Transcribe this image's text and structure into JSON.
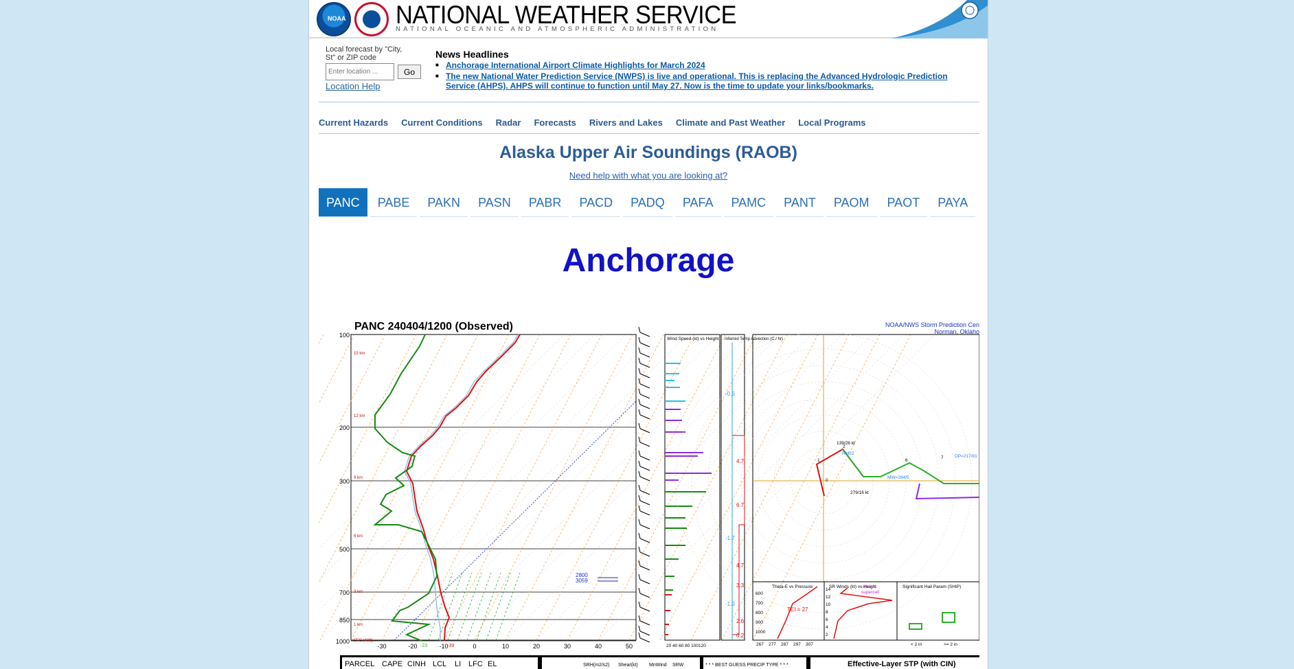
{
  "header": {
    "title": "NATIONAL WEATHER SERVICE",
    "subtitle": "NATIONAL OCEANIC AND ATMOSPHERIC ADMINISTRATION",
    "noaa_logo_text": "NOAA"
  },
  "local_forecast": {
    "label": "Local forecast by \"City, St\" or ZIP code",
    "placeholder": "Enter location ...",
    "go": "Go",
    "help": "Location Help"
  },
  "news": {
    "title": "News Headlines",
    "items": [
      "Anchorage International Airport Climate Highlights for March 2024",
      "The new National Water Prediction Service (NWPS) is live and operational. This is replacing the Advanced Hydrologic Prediction Service (AHPS). AHPS will continue to function until May 27. Now is the time to update your links/bookmarks."
    ]
  },
  "nav": [
    "Current Hazards",
    "Current Conditions",
    "Radar",
    "Forecasts",
    "Rivers and Lakes",
    "Climate and Past Weather",
    "Local Programs"
  ],
  "page": {
    "heading": "Alaska Upper Air Soundings (RAOB)",
    "help_link": "Need help with what you are looking at?",
    "station_name": "Anchorage"
  },
  "tabs": [
    "PANC",
    "PABE",
    "PAKN",
    "PASN",
    "PABR",
    "PACD",
    "PADQ",
    "PAFA",
    "PAMC",
    "PANT",
    "PAOM",
    "PAOT",
    "PAYA"
  ],
  "active_tab": "PANC",
  "sounding": {
    "title": "PANC   240404/1200  (Observed)",
    "credit": [
      "NOAA/NWS Storm Prediction Cen",
      "Norman, Oklaho"
    ],
    "pressure_levels": [
      "100",
      "200",
      "300",
      "500",
      "700",
      "850",
      "1000"
    ],
    "temp_ticks": [
      "-30",
      "-20",
      "-10",
      "0",
      "10",
      "20",
      "30",
      "40",
      "50"
    ],
    "height_labels": [
      "15 km",
      "12 km",
      "9 km",
      "6 km",
      "3 km",
      "1 km",
      "SFC (40ft)"
    ],
    "wind_panel_title": "Wind Speed (kt) vs Height",
    "wind_ticks": "20 40 60 80 100120",
    "advection_title": "Inferred Temp Advection (C / hr)",
    "advection_values": [
      "-0.6",
      "4.7",
      "6.7",
      "-1.7",
      "4.7",
      "3.3",
      "-1.9",
      "2.6",
      "0.2"
    ],
    "hodo_labels": [
      "0",
      "1",
      "2",
      "6",
      "7",
      "139/28 kt",
      "279/16 kt",
      "DP=217/81",
      "MW=284/5",
      "RM22"
    ],
    "theta_title": "Theta-E vs Pressure",
    "theta_ticks": [
      "600",
      "700",
      "800",
      "900",
      "1000"
    ],
    "theta_bottom": [
      "267",
      "277",
      "287",
      "297",
      "307"
    ],
    "theta_value": "TEI = 27",
    "srw_title": "SR Winds (kt) vs Height",
    "srw_labels": [
      "classic",
      "supercell"
    ],
    "srw_ticks": [
      "14",
      "12",
      "10",
      "8",
      "6",
      "4",
      "2"
    ],
    "ship_title": "Significant Hail Param (SHIP)",
    "ship_bottom": [
      "< 2 in",
      ">= 2 in"
    ],
    "bottom_bar": [
      "PARCEL",
      "CAPE",
      "CINH",
      "LCL",
      "LI",
      "LFC",
      "EL",
      "SRH(m2/s2)",
      "Shear(kt)",
      "MnWind",
      "SRW",
      "* * * BEST GUESS PRECIP TYPE * * *",
      "Effective-Layer STP (with CIN)"
    ],
    "mixing_labels": [
      "2800",
      "3059"
    ],
    "surface_temps": [
      "-23",
      "-39"
    ]
  },
  "colors": {
    "nav_link": "#2c5a8f",
    "tab_active": "#1271bd",
    "station": "#1111c5",
    "temp": "#e01010",
    "dewpoint": "#138a13",
    "wind_cyan": "#22c4e0",
    "wind_purple": "#8a2be2"
  }
}
